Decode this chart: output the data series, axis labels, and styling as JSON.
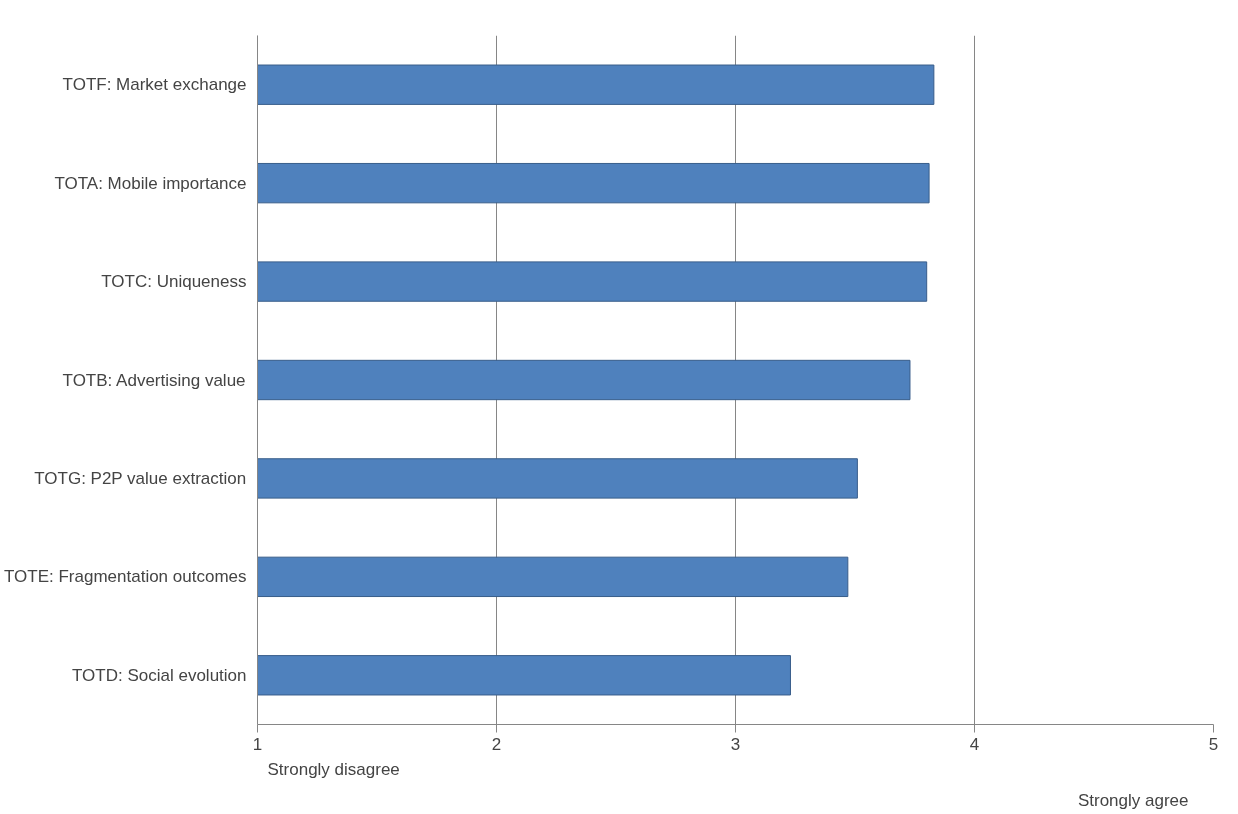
{
  "chart_data": {
    "type": "bar",
    "orientation": "horizontal",
    "categories": [
      "TOTF: Market exchange",
      "TOTA: Mobile importance",
      "TOTC: Uniqueness",
      "TOTB: Advertising value",
      "TOTG: P2P value extraction",
      "TOTE: Fragmentation outcomes",
      "TOTD: Social evolution"
    ],
    "values": [
      3.83,
      3.81,
      3.8,
      3.73,
      3.51,
      3.47,
      3.23
    ],
    "color": "#4f81bd",
    "xlim": [
      1,
      5
    ],
    "xticks": [
      1,
      2,
      3,
      4,
      5
    ],
    "grid": "x",
    "annotations": [
      "Strongly disagree",
      "Strongly agree"
    ]
  }
}
